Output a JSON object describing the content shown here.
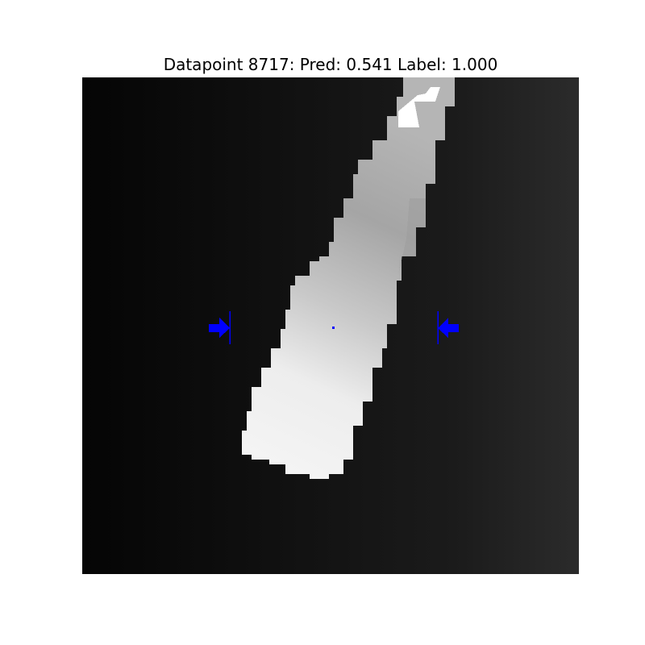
{
  "figure": {
    "title": "Datapoint 8717: Pred: 0.541 Label: 1.000"
  },
  "colors": {
    "background": "#ffffff",
    "grasp_marker": "#0000ff",
    "depth_dark": "#050505",
    "depth_bright": "#f4f4f4"
  },
  "depth_image": {
    "colormap": "gray"
  }
}
